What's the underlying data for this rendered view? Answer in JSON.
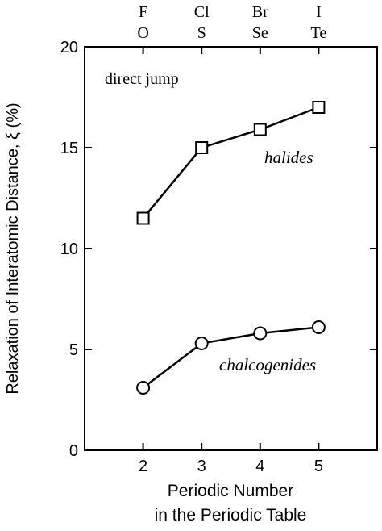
{
  "chart_data": {
    "type": "line",
    "xlabel": [
      "Periodic Number",
      "in the Periodic Table"
    ],
    "ylabel": "Relaxation of Interatomic Distance, ξ (%)",
    "xlim": [
      1,
      6
    ],
    "ylim": [
      0,
      20
    ],
    "x_ticks": [
      2,
      3,
      4,
      5
    ],
    "y_ticks": [
      0,
      5,
      10,
      15,
      20
    ],
    "top_labels": [
      {
        "x": 2,
        "upper": "F",
        "lower": "O"
      },
      {
        "x": 3,
        "upper": "Cl",
        "lower": "S"
      },
      {
        "x": 4,
        "upper": "Br",
        "lower": "Se"
      },
      {
        "x": 5,
        "upper": "I",
        "lower": "Te"
      }
    ],
    "annotation": "direct jump",
    "grid": false,
    "series": [
      {
        "name": "halides",
        "marker": "square",
        "x": [
          2,
          3,
          4,
          5
        ],
        "values": [
          11.5,
          15.0,
          15.9,
          17.0
        ]
      },
      {
        "name": "chalcogenides",
        "marker": "circle",
        "x": [
          2,
          3,
          4,
          5
        ],
        "values": [
          3.1,
          5.3,
          5.8,
          6.1
        ]
      }
    ]
  }
}
